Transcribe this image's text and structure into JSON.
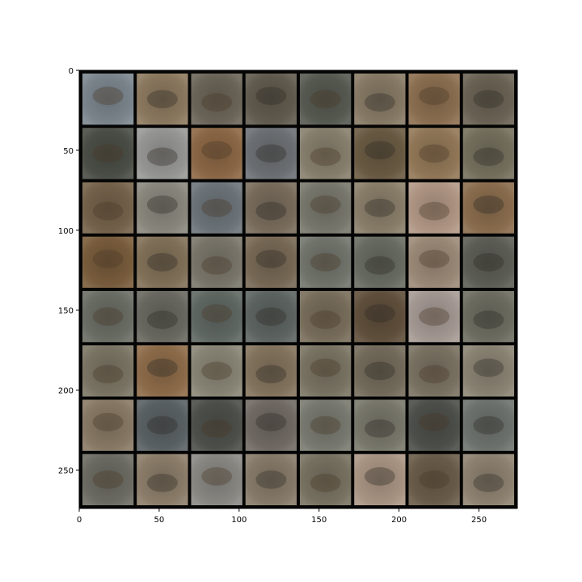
{
  "figure": {
    "background": "#ffffff",
    "image": {
      "description_grid": {
        "rows": 8,
        "cols": 8
      },
      "border_color": "#050505",
      "tiles": [
        [
          "#7e8890",
          "#8f7b61",
          "#6e675a",
          "#645d50",
          "#595c53",
          "#8a7d68",
          "#8e7152",
          "#6d6556"
        ],
        [
          "#4c5048",
          "#9a9a98",
          "#8f6a47",
          "#6f7377",
          "#8a8270",
          "#6c5c44",
          "#957a59",
          "#77725f"
        ],
        [
          "#77644c",
          "#8d8b80",
          "#6f777c",
          "#7b6e5e",
          "#7a7a6f",
          "#8c816c",
          "#b49a88",
          "#8d6f4f"
        ],
        [
          "#7b5e3d",
          "#84735a",
          "#7c786c",
          "#7a6b57",
          "#74776e",
          "#6b6e64",
          "#9f8c7a",
          "#5f6058"
        ],
        [
          "#6d7067",
          "#6b6b63",
          "#626a65",
          "#5f6663",
          "#7b705d",
          "#62513d",
          "#a89c96",
          "#6f6f63"
        ],
        [
          "#7d7766",
          "#906e4b",
          "#8c8878",
          "#86765f",
          "#7c7665",
          "#766d5d",
          "#7c7464",
          "#8d8676"
        ],
        [
          "#8b7c67",
          "#5c6366",
          "#4f524c",
          "#736c66",
          "#7b7c72",
          "#7b7a6d",
          "#4f514c",
          "#707570"
        ],
        [
          "#6e6e65",
          "#8f806c",
          "#8c8b86",
          "#8a7e6c",
          "#7a7463",
          "#ad9886",
          "#6d5e4b",
          "#918573"
        ]
      ]
    },
    "x_axis": {
      "ticks": [
        {
          "value": 0,
          "label": "0"
        },
        {
          "value": 50,
          "label": "50"
        },
        {
          "value": 100,
          "label": "100"
        },
        {
          "value": 150,
          "label": "150"
        },
        {
          "value": 200,
          "label": "200"
        },
        {
          "value": 250,
          "label": "250"
        }
      ],
      "range": [
        0,
        274
      ]
    },
    "y_axis": {
      "ticks": [
        {
          "value": 0,
          "label": "0"
        },
        {
          "value": 50,
          "label": "50"
        },
        {
          "value": 100,
          "label": "100"
        },
        {
          "value": 150,
          "label": "150"
        },
        {
          "value": 200,
          "label": "200"
        },
        {
          "value": 250,
          "label": "250"
        }
      ],
      "range": [
        0,
        274
      ],
      "inverted": true
    }
  }
}
